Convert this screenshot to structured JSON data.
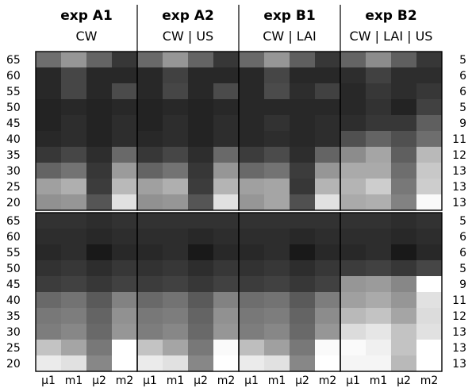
{
  "chart_data": {
    "type": "heatmap",
    "experiments": [
      {
        "title": "exp A1",
        "subtitle": "CW"
      },
      {
        "title": "exp A2",
        "subtitle": "CW | US"
      },
      {
        "title": "exp B1",
        "subtitle": "CW | LAI"
      },
      {
        "title": "exp B2",
        "subtitle": "CW | LAI | US"
      }
    ],
    "rows": [
      "65",
      "60",
      "55",
      "50",
      "45",
      "40",
      "35",
      "30",
      "25",
      "20"
    ],
    "right_labels": [
      "5",
      "6",
      "6",
      "5",
      "9",
      "11",
      "12",
      "13",
      "13",
      "13"
    ],
    "columns": [
      "μ1",
      "m1",
      "μ2",
      "m2"
    ],
    "top_panel_gray": [
      [
        [
          110,
          150,
          100,
          55
        ],
        [
          105,
          150,
          100,
          55
        ],
        [
          105,
          150,
          95,
          55
        ],
        [
          100,
          140,
          95,
          55
        ]
      ],
      [
        [
          40,
          70,
          40,
          40
        ],
        [
          40,
          65,
          40,
          40
        ],
        [
          40,
          70,
          40,
          40
        ],
        [
          45,
          65,
          45,
          45
        ]
      ],
      [
        [
          40,
          70,
          40,
          75
        ],
        [
          40,
          70,
          40,
          75
        ],
        [
          40,
          75,
          45,
          65
        ],
        [
          40,
          55,
          45,
          55
        ]
      ],
      [
        [
          35,
          40,
          35,
          40
        ],
        [
          35,
          40,
          35,
          40
        ],
        [
          40,
          40,
          40,
          40
        ],
        [
          40,
          50,
          35,
          65
        ]
      ],
      [
        [
          35,
          45,
          35,
          45
        ],
        [
          35,
          45,
          35,
          45
        ],
        [
          40,
          50,
          40,
          45
        ],
        [
          45,
          55,
          55,
          95
        ]
      ],
      [
        [
          40,
          45,
          35,
          45
        ],
        [
          40,
          45,
          35,
          45
        ],
        [
          40,
          45,
          40,
          45
        ],
        [
          80,
          100,
          80,
          110
        ]
      ],
      [
        [
          55,
          70,
          45,
          105
        ],
        [
          55,
          70,
          45,
          105
        ],
        [
          60,
          75,
          45,
          100
        ],
        [
          140,
          165,
          95,
          185
        ]
      ],
      [
        [
          100,
          115,
          55,
          155
        ],
        [
          100,
          115,
          55,
          150
        ],
        [
          105,
          115,
          60,
          150
        ],
        [
          170,
          170,
          110,
          200
        ]
      ],
      [
        [
          160,
          175,
          60,
          185
        ],
        [
          160,
          175,
          60,
          180
        ],
        [
          160,
          165,
          55,
          180
        ],
        [
          180,
          205,
          120,
          205
        ]
      ],
      [
        [
          145,
          150,
          85,
          225
        ],
        [
          145,
          150,
          85,
          225
        ],
        [
          150,
          165,
          80,
          225
        ],
        [
          170,
          175,
          130,
          250
        ]
      ]
    ],
    "bottom_panel_gray": [
      [
        [
          50,
          50,
          45,
          50
        ],
        [
          50,
          50,
          50,
          50
        ],
        [
          50,
          50,
          50,
          50
        ],
        [
          50,
          50,
          45,
          50
        ]
      ],
      [
        [
          45,
          45,
          40,
          45
        ],
        [
          45,
          45,
          40,
          45
        ],
        [
          45,
          45,
          40,
          45
        ],
        [
          45,
          45,
          40,
          45
        ]
      ],
      [
        [
          40,
          45,
          25,
          40
        ],
        [
          40,
          45,
          25,
          40
        ],
        [
          40,
          45,
          25,
          40
        ],
        [
          40,
          45,
          25,
          40
        ]
      ],
      [
        [
          50,
          55,
          45,
          55
        ],
        [
          50,
          55,
          45,
          55
        ],
        [
          50,
          55,
          45,
          55
        ],
        [
          60,
          65,
          55,
          70
        ]
      ],
      [
        [
          60,
          65,
          55,
          65
        ],
        [
          60,
          65,
          55,
          65
        ],
        [
          60,
          65,
          55,
          65
        ],
        [
          150,
          155,
          135,
          255
        ]
      ],
      [
        [
          105,
          115,
          90,
          130
        ],
        [
          105,
          115,
          90,
          130
        ],
        [
          110,
          115,
          90,
          125
        ],
        [
          160,
          170,
          150,
          225
        ]
      ],
      [
        [
          120,
          125,
          100,
          145
        ],
        [
          120,
          125,
          100,
          145
        ],
        [
          120,
          125,
          100,
          140
        ],
        [
          185,
          195,
          165,
          220
        ]
      ],
      [
        [
          125,
          135,
          105,
          150
        ],
        [
          125,
          135,
          105,
          150
        ],
        [
          125,
          135,
          105,
          150
        ],
        [
          220,
          230,
          195,
          225
        ]
      ],
      [
        [
          195,
          165,
          120,
          255
        ],
        [
          195,
          165,
          120,
          250
        ],
        [
          190,
          160,
          120,
          250
        ],
        [
          250,
          240,
          195,
          255
        ]
      ],
      [
        [
          235,
          225,
          135,
          255
        ],
        [
          235,
          225,
          135,
          255
        ],
        [
          235,
          225,
          135,
          255
        ],
        [
          245,
          245,
          185,
          255
        ]
      ]
    ]
  }
}
